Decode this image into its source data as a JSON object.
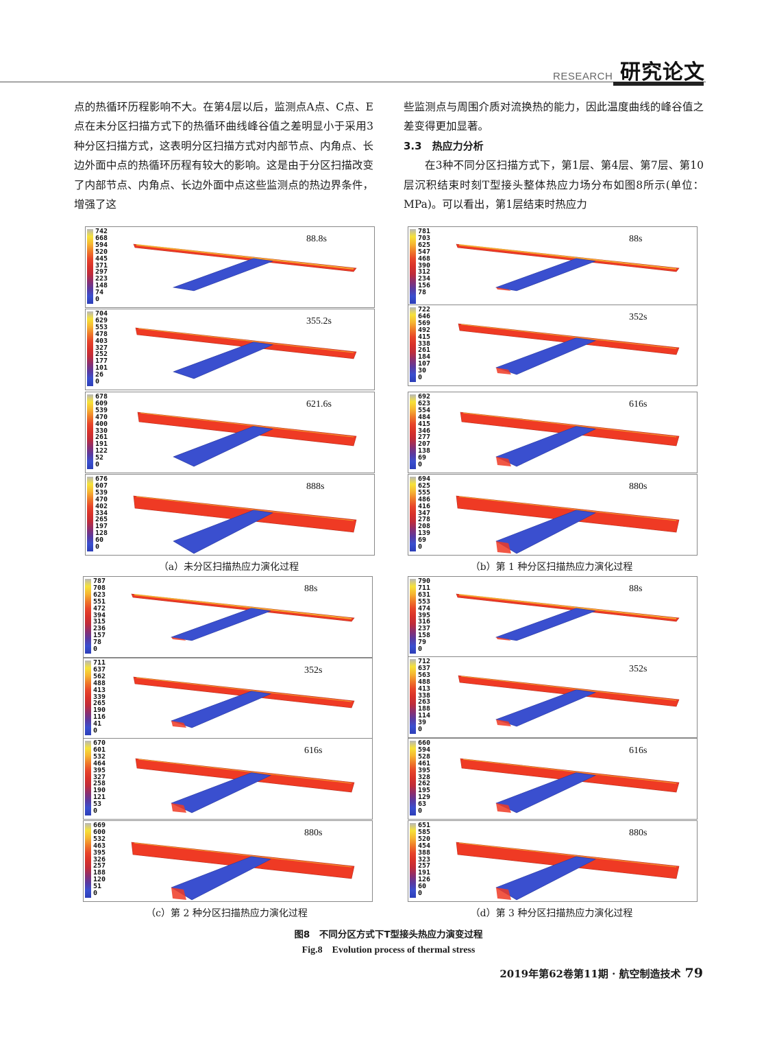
{
  "header": {
    "section_en": "RESEARCH",
    "section_zh": "研究论文"
  },
  "left_column": {
    "paragraph": "点的热循环历程影响不大。在第4层以后，监测点A点、C点、E点在未分区扫描方式下的热循环曲线峰谷值之差明显小于采用3种分区扫描方式，这表明分区扫描方式对内部节点、内角点、长边外面中点的热循环历程有较大的影响。这是由于分区扫描改变了内部节点、内角点、长边外面中点这些监测点的热边界条件，增强了这"
  },
  "right_column": {
    "paragraph1": "些监测点与周围介质对流换热的能力，因此温度曲线的峰谷值之差变得更加显著。",
    "section_heading": "3.3　热应力分析",
    "paragraph2": "在3种不同分区扫描方式下，第1层、第4层、第7层、第10层沉积结束时刻T型接头整体热应力场分布如图8所示(单位：MPa)。可以看出，第1层结束时热应力"
  },
  "figure": {
    "caption_zh": "图8　不同分区方式下T型接头热应力演变过程",
    "caption_en": "Fig.8　Evolution process of thermal stress",
    "groups": [
      {
        "caption": "（a）未分区扫描热应力演化过程",
        "panels": [
          {
            "time": "88.8s",
            "scale": [
              "742",
              "668",
              "594",
              "520",
              "445",
              "371",
              "297",
              "223",
              "148",
              "74",
              "0"
            ]
          },
          {
            "time": "355.2s",
            "scale": [
              "704",
              "629",
              "553",
              "478",
              "403",
              "327",
              "252",
              "177",
              "101",
              "26",
              "0"
            ]
          },
          {
            "time": "621.6s",
            "scale": [
              "678",
              "609",
              "539",
              "470",
              "400",
              "330",
              "261",
              "191",
              "122",
              "52",
              "0"
            ]
          },
          {
            "time": "888s",
            "scale": [
              "676",
              "607",
              "539",
              "470",
              "402",
              "334",
              "265",
              "197",
              "128",
              "60",
              "0"
            ]
          }
        ]
      },
      {
        "caption": "（b）第 1 种分区扫描热应力演化过程",
        "panels": [
          {
            "time": "88s",
            "scale": [
              "781",
              "703",
              "625",
              "547",
              "468",
              "390",
              "312",
              "234",
              "156",
              "78"
            ]
          },
          {
            "time": "352s",
            "scale": [
              "722",
              "646",
              "569",
              "492",
              "415",
              "338",
              "261",
              "184",
              "107",
              "30",
              "0"
            ]
          },
          {
            "time": "616s",
            "scale": [
              "692",
              "623",
              "554",
              "484",
              "415",
              "346",
              "277",
              "207",
              "138",
              "69",
              "0"
            ]
          },
          {
            "time": "880s",
            "scale": [
              "694",
              "625",
              "555",
              "486",
              "416",
              "347",
              "278",
              "208",
              "139",
              "69",
              "0"
            ]
          }
        ]
      },
      {
        "caption": "（c）第 2 种分区扫描热应力演化过程",
        "panels": [
          {
            "time": "88s",
            "scale": [
              "787",
              "708",
              "623",
              "551",
              "472",
              "394",
              "315",
              "236",
              "157",
              "78",
              "0"
            ]
          },
          {
            "time": "352s",
            "scale": [
              "711",
              "637",
              "562",
              "488",
              "413",
              "339",
              "265",
              "190",
              "116",
              "41",
              "0"
            ]
          },
          {
            "time": "616s",
            "scale": [
              "670",
              "601",
              "532",
              "464",
              "395",
              "327",
              "258",
              "190",
              "121",
              "53",
              "0"
            ]
          },
          {
            "time": "880s",
            "scale": [
              "669",
              "600",
              "532",
              "463",
              "395",
              "326",
              "257",
              "188",
              "120",
              "51",
              "0"
            ]
          }
        ]
      },
      {
        "caption": "（d）第 3 种分区扫描热应力演化过程",
        "panels": [
          {
            "time": "88s",
            "scale": [
              "790",
              "711",
              "631",
              "553",
              "474",
              "395",
              "316",
              "237",
              "158",
              "79",
              "0"
            ]
          },
          {
            "time": "352s",
            "scale": [
              "712",
              "637",
              "563",
              "488",
              "413",
              "338",
              "263",
              "188",
              "114",
              "39",
              "0"
            ]
          },
          {
            "time": "616s",
            "scale": [
              "660",
              "594",
              "528",
              "461",
              "395",
              "328",
              "262",
              "195",
              "129",
              "63",
              "0"
            ]
          },
          {
            "time": "880s",
            "scale": [
              "651",
              "585",
              "520",
              "454",
              "388",
              "323",
              "257",
              "191",
              "126",
              "60",
              "0"
            ]
          }
        ]
      }
    ]
  },
  "footer": {
    "journal": "2019年第62卷第11期 · 航空制造技术",
    "page": "79"
  },
  "colors": {
    "stress_high": "#ef3a24",
    "stress_low": "#3a4fcf",
    "hot_edge": "#f6c433"
  }
}
